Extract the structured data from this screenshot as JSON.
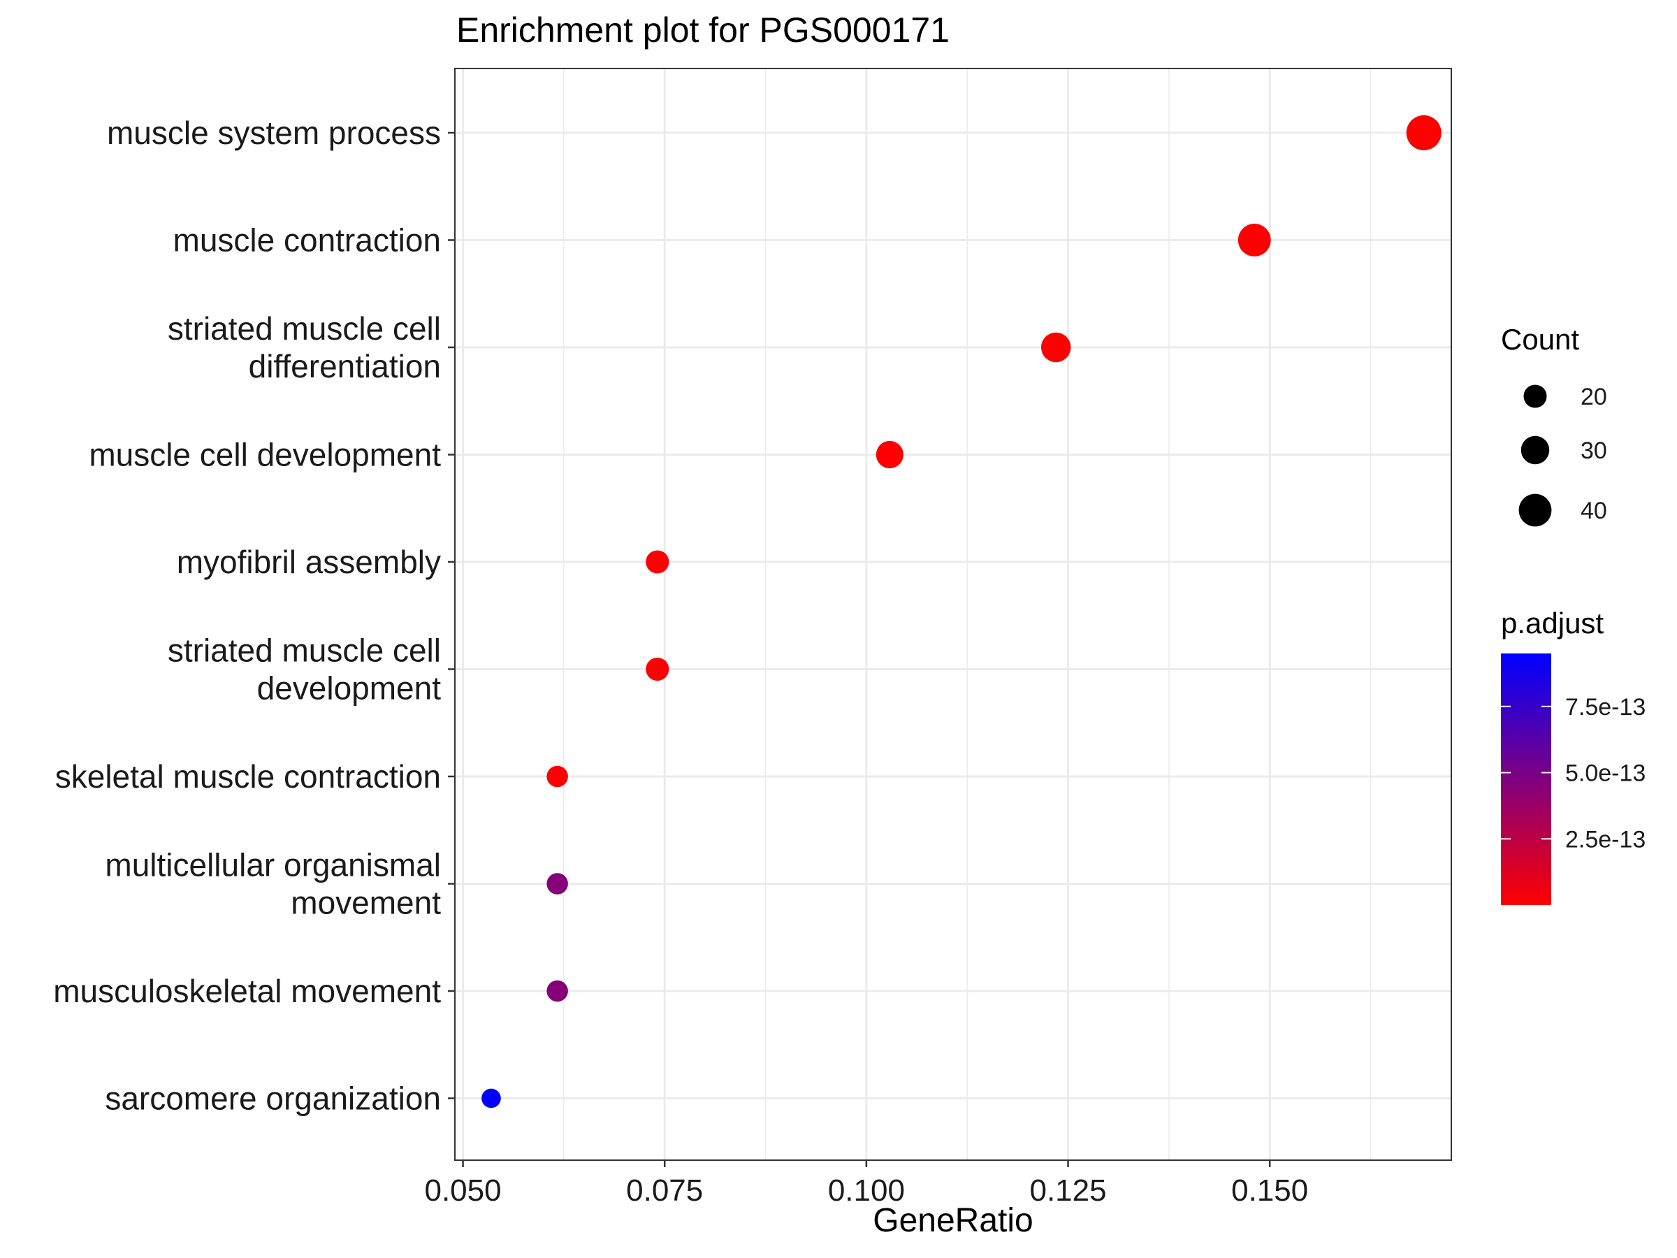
{
  "chart_data": {
    "type": "scatter",
    "title": "Enrichment plot for PGS000171",
    "xlabel": "GeneRatio",
    "ylabel": "",
    "xlim": [
      0.049,
      0.1725
    ],
    "xticks": [
      0.05,
      0.075,
      0.1,
      0.125,
      0.15
    ],
    "xtick_labels": [
      "0.050",
      "0.075",
      "0.100",
      "0.125",
      "0.150"
    ],
    "grid": true,
    "legend_position": "right",
    "categories": [
      "muscle system process",
      "muscle contraction",
      "striated muscle cell differentiation",
      "muscle cell development",
      "myofibril assembly",
      "striated muscle cell development",
      "skeletal muscle contraction",
      "multicellular organismal movement",
      "musculoskeletal movement",
      "sarcomere organization"
    ],
    "category_label_lines": [
      [
        "muscle system process"
      ],
      [
        "muscle contraction"
      ],
      [
        "striated muscle cell",
        "differentiation"
      ],
      [
        "muscle cell development"
      ],
      [
        "myofibril assembly"
      ],
      [
        "striated muscle cell",
        "development"
      ],
      [
        "skeletal muscle contraction"
      ],
      [
        "multicellular organismal",
        "movement"
      ],
      [
        "musculoskeletal movement"
      ],
      [
        "sarcomere organization"
      ]
    ],
    "points": [
      {
        "term": "muscle system process",
        "gene_ratio": 0.1691,
        "count": 46,
        "p_adjust": 1e-17
      },
      {
        "term": "muscle contraction",
        "gene_ratio": 0.1481,
        "count": 40,
        "p_adjust": 1e-16
      },
      {
        "term": "striated muscle cell differentiation",
        "gene_ratio": 0.1235,
        "count": 33,
        "p_adjust": 1e-15
      },
      {
        "term": "muscle cell development",
        "gene_ratio": 0.1029,
        "count": 28,
        "p_adjust": 2e-15
      },
      {
        "term": "myofibril assembly",
        "gene_ratio": 0.0741,
        "count": 20,
        "p_adjust": 3e-15
      },
      {
        "term": "striated muscle cell development",
        "gene_ratio": 0.0741,
        "count": 20,
        "p_adjust": 4e-15
      },
      {
        "term": "skeletal muscle contraction",
        "gene_ratio": 0.0617,
        "count": 17,
        "p_adjust": 5e-15
      },
      {
        "term": "multicellular organismal movement",
        "gene_ratio": 0.0617,
        "count": 17,
        "p_adjust": 4.5e-13
      },
      {
        "term": "musculoskeletal movement",
        "gene_ratio": 0.0617,
        "count": 17,
        "p_adjust": 4.5e-13
      },
      {
        "term": "sarcomere organization",
        "gene_ratio": 0.0535,
        "count": 14,
        "p_adjust": 9.5e-13
      }
    ],
    "size_legend": {
      "title": "Count",
      "values": [
        20,
        30,
        40
      ],
      "labels": [
        "20",
        "30",
        "40"
      ]
    },
    "color_legend": {
      "title": "p.adjust",
      "range": [
        0,
        9.5e-13
      ],
      "low_color": "#ff0000",
      "high_color": "#0000ff",
      "ticks": [
        2.5e-13,
        5e-13,
        7.5e-13
      ],
      "tick_labels": [
        "2.5e-13",
        "5.0e-13",
        "7.5e-13"
      ]
    }
  }
}
